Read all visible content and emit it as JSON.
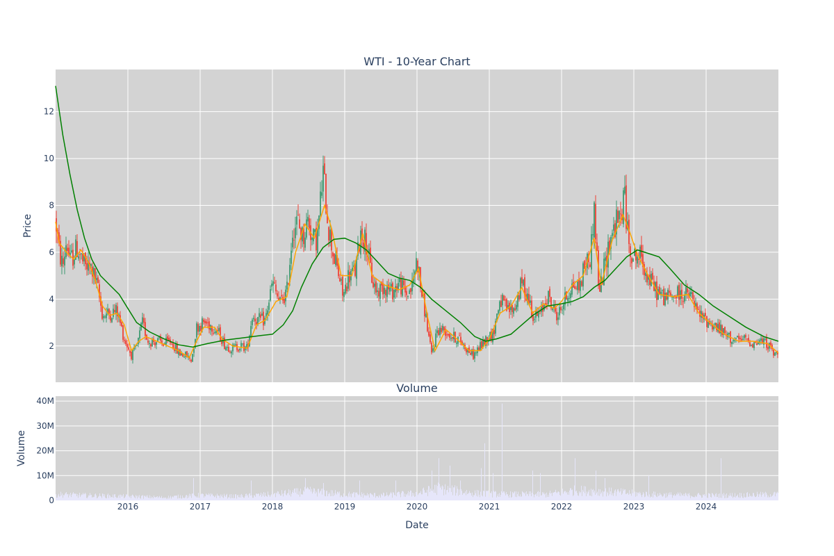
{
  "chart_data": [
    {
      "type": "candlestick",
      "title": "WTI - 10-Year Chart",
      "ylabel": "Price",
      "xlabel": "Date",
      "x_range": [
        2015.0,
        2025.0
      ],
      "ylim": [
        0.45,
        13.8
      ],
      "y_ticks": [
        2,
        4,
        6,
        8,
        10,
        12
      ],
      "x_ticks": [
        2016,
        2017,
        2018,
        2019,
        2020,
        2021,
        2022,
        2023,
        2024
      ],
      "grid": true,
      "increasing_color": "#3d9970",
      "decreasing_color": "#ef4136",
      "background": "#d3d3d3",
      "price_path": [
        [
          2015.0,
          7.4
        ],
        [
          2015.05,
          6.0
        ],
        [
          2015.1,
          5.4
        ],
        [
          2015.15,
          6.5
        ],
        [
          2015.2,
          5.6
        ],
        [
          2015.3,
          6.2
        ],
        [
          2015.4,
          5.4
        ],
        [
          2015.5,
          5.3
        ],
        [
          2015.58,
          4.5
        ],
        [
          2015.65,
          3.3
        ],
        [
          2015.75,
          3.4
        ],
        [
          2015.85,
          3.5
        ],
        [
          2015.95,
          2.3
        ],
        [
          2016.05,
          1.6
        ],
        [
          2016.12,
          1.9
        ],
        [
          2016.2,
          3.0
        ],
        [
          2016.28,
          2.2
        ],
        [
          2016.4,
          2.2
        ],
        [
          2016.5,
          2.1
        ],
        [
          2016.6,
          2.2
        ],
        [
          2016.7,
          1.7
        ],
        [
          2016.8,
          1.6
        ],
        [
          2016.88,
          1.4
        ],
        [
          2016.95,
          2.8
        ],
        [
          2017.05,
          3.0
        ],
        [
          2017.15,
          2.9
        ],
        [
          2017.25,
          2.6
        ],
        [
          2017.35,
          2.0
        ],
        [
          2017.45,
          1.9
        ],
        [
          2017.55,
          2.0
        ],
        [
          2017.65,
          1.9
        ],
        [
          2017.72,
          3.3
        ],
        [
          2017.8,
          3.1
        ],
        [
          2017.9,
          3.1
        ],
        [
          2018.0,
          4.7
        ],
        [
          2018.1,
          3.8
        ],
        [
          2018.2,
          4.3
        ],
        [
          2018.28,
          7.0
        ],
        [
          2018.35,
          7.3
        ],
        [
          2018.42,
          6.6
        ],
        [
          2018.5,
          7.5
        ],
        [
          2018.55,
          6.5
        ],
        [
          2018.62,
          6.6
        ],
        [
          2018.7,
          9.4
        ],
        [
          2018.78,
          7.0
        ],
        [
          2018.85,
          5.8
        ],
        [
          2018.92,
          5.0
        ],
        [
          2018.98,
          4.1
        ],
        [
          2019.05,
          5.0
        ],
        [
          2019.15,
          5.2
        ],
        [
          2019.22,
          6.9
        ],
        [
          2019.3,
          6.4
        ],
        [
          2019.38,
          4.8
        ],
        [
          2019.45,
          4.3
        ],
        [
          2019.55,
          4.6
        ],
        [
          2019.65,
          4.3
        ],
        [
          2019.75,
          4.7
        ],
        [
          2019.85,
          4.2
        ],
        [
          2019.93,
          4.5
        ],
        [
          2020.0,
          5.8
        ],
        [
          2020.05,
          4.5
        ],
        [
          2020.12,
          3.3
        ],
        [
          2020.2,
          1.6
        ],
        [
          2020.28,
          2.7
        ],
        [
          2020.38,
          2.7
        ],
        [
          2020.48,
          2.4
        ],
        [
          2020.58,
          2.3
        ],
        [
          2020.68,
          1.9
        ],
        [
          2020.78,
          1.6
        ],
        [
          2020.88,
          2.0
        ],
        [
          2020.98,
          2.4
        ],
        [
          2021.05,
          2.5
        ],
        [
          2021.15,
          4.0
        ],
        [
          2021.25,
          3.5
        ],
        [
          2021.35,
          3.6
        ],
        [
          2021.45,
          4.7
        ],
        [
          2021.55,
          4.0
        ],
        [
          2021.62,
          3.2
        ],
        [
          2021.72,
          3.4
        ],
        [
          2021.8,
          4.2
        ],
        [
          2021.88,
          3.6
        ],
        [
          2021.95,
          3.3
        ],
        [
          2022.05,
          4.0
        ],
        [
          2022.15,
          4.6
        ],
        [
          2022.25,
          4.5
        ],
        [
          2022.32,
          5.5
        ],
        [
          2022.4,
          5.8
        ],
        [
          2022.45,
          8.0
        ],
        [
          2022.52,
          4.2
        ],
        [
          2022.6,
          5.5
        ],
        [
          2022.68,
          6.7
        ],
        [
          2022.75,
          7.2
        ],
        [
          2022.82,
          7.5
        ],
        [
          2022.87,
          8.6
        ],
        [
          2022.92,
          6.5
        ],
        [
          2023.0,
          5.8
        ],
        [
          2023.1,
          5.8
        ],
        [
          2023.2,
          4.9
        ],
        [
          2023.3,
          4.4
        ],
        [
          2023.4,
          4.1
        ],
        [
          2023.5,
          4.1
        ],
        [
          2023.6,
          4.2
        ],
        [
          2023.7,
          4.2
        ],
        [
          2023.8,
          4.1
        ],
        [
          2023.88,
          3.4
        ],
        [
          2023.95,
          3.2
        ],
        [
          2024.05,
          3.0
        ],
        [
          2024.15,
          2.8
        ],
        [
          2024.25,
          2.5
        ],
        [
          2024.35,
          2.3
        ],
        [
          2024.45,
          2.2
        ],
        [
          2024.55,
          2.3
        ],
        [
          2024.65,
          2.1
        ],
        [
          2024.75,
          2.2
        ],
        [
          2024.85,
          2.1
        ],
        [
          2024.95,
          1.6
        ],
        [
          2025.0,
          1.7
        ]
      ],
      "series": [
        {
          "color": "#ffa500",
          "values": [
            [
              2015.0,
              7.3
            ],
            [
              2015.05,
              6.4
            ],
            [
              2015.15,
              6.0
            ],
            [
              2015.25,
              5.7
            ],
            [
              2015.35,
              6.1
            ],
            [
              2015.45,
              5.6
            ],
            [
              2015.55,
              4.8
            ],
            [
              2015.65,
              3.7
            ],
            [
              2015.75,
              3.3
            ],
            [
              2015.85,
              3.4
            ],
            [
              2015.95,
              2.9
            ],
            [
              2016.05,
              1.8
            ],
            [
              2016.15,
              2.2
            ],
            [
              2016.25,
              2.4
            ],
            [
              2016.4,
              2.2
            ],
            [
              2016.55,
              2.0
            ],
            [
              2016.7,
              1.8
            ],
            [
              2016.85,
              1.5
            ],
            [
              2016.95,
              2.2
            ],
            [
              2017.05,
              2.8
            ],
            [
              2017.2,
              2.8
            ],
            [
              2017.3,
              2.3
            ],
            [
              2017.45,
              2.0
            ],
            [
              2017.65,
              1.9
            ],
            [
              2017.78,
              2.9
            ],
            [
              2017.9,
              3.1
            ],
            [
              2018.05,
              3.9
            ],
            [
              2018.2,
              4.1
            ],
            [
              2018.32,
              6.0
            ],
            [
              2018.45,
              7.2
            ],
            [
              2018.58,
              6.6
            ],
            [
              2018.72,
              8.0
            ],
            [
              2018.82,
              7.0
            ],
            [
              2018.95,
              5.0
            ],
            [
              2019.1,
              5.0
            ],
            [
              2019.25,
              6.8
            ],
            [
              2019.38,
              5.0
            ],
            [
              2019.55,
              4.6
            ],
            [
              2019.75,
              4.4
            ],
            [
              2019.9,
              4.6
            ],
            [
              2020.02,
              5.3
            ],
            [
              2020.15,
              3.2
            ],
            [
              2020.25,
              1.8
            ],
            [
              2020.4,
              2.7
            ],
            [
              2020.55,
              2.3
            ],
            [
              2020.72,
              1.8
            ],
            [
              2020.88,
              1.8
            ],
            [
              2021.0,
              2.3
            ],
            [
              2021.15,
              3.4
            ],
            [
              2021.3,
              3.7
            ],
            [
              2021.45,
              4.5
            ],
            [
              2021.6,
              3.4
            ],
            [
              2021.75,
              3.8
            ],
            [
              2021.9,
              3.6
            ],
            [
              2022.0,
              3.9
            ],
            [
              2022.15,
              4.6
            ],
            [
              2022.3,
              5.0
            ],
            [
              2022.45,
              6.6
            ],
            [
              2022.55,
              4.6
            ],
            [
              2022.7,
              6.5
            ],
            [
              2022.85,
              7.6
            ],
            [
              2022.95,
              6.8
            ],
            [
              2023.05,
              5.9
            ],
            [
              2023.2,
              5.0
            ],
            [
              2023.35,
              4.2
            ],
            [
              2023.55,
              4.1
            ],
            [
              2023.75,
              4.2
            ],
            [
              2023.9,
              3.4
            ],
            [
              2024.05,
              3.0
            ],
            [
              2024.25,
              2.5
            ],
            [
              2024.45,
              2.2
            ],
            [
              2024.65,
              2.2
            ],
            [
              2024.85,
              2.1
            ],
            [
              2025.0,
              1.7
            ]
          ]
        },
        {
          "color": "#008000",
          "values": [
            [
              2015.0,
              13.1
            ],
            [
              2015.1,
              11.0
            ],
            [
              2015.2,
              9.3
            ],
            [
              2015.3,
              7.8
            ],
            [
              2015.4,
              6.6
            ],
            [
              2015.5,
              5.7
            ],
            [
              2015.62,
              5.0
            ],
            [
              2015.75,
              4.6
            ],
            [
              2015.88,
              4.2
            ],
            [
              2016.0,
              3.6
            ],
            [
              2016.12,
              3.0
            ],
            [
              2016.3,
              2.6
            ],
            [
              2016.5,
              2.3
            ],
            [
              2016.7,
              2.05
            ],
            [
              2016.9,
              1.95
            ],
            [
              2017.1,
              2.1
            ],
            [
              2017.35,
              2.25
            ],
            [
              2017.6,
              2.35
            ],
            [
              2017.85,
              2.45
            ],
            [
              2018.0,
              2.5
            ],
            [
              2018.15,
              2.9
            ],
            [
              2018.28,
              3.5
            ],
            [
              2018.4,
              4.5
            ],
            [
              2018.55,
              5.5
            ],
            [
              2018.7,
              6.2
            ],
            [
              2018.85,
              6.55
            ],
            [
              2019.0,
              6.6
            ],
            [
              2019.15,
              6.4
            ],
            [
              2019.3,
              6.1
            ],
            [
              2019.45,
              5.6
            ],
            [
              2019.6,
              5.1
            ],
            [
              2019.75,
              4.9
            ],
            [
              2019.9,
              4.8
            ],
            [
              2020.05,
              4.5
            ],
            [
              2020.2,
              4.0
            ],
            [
              2020.4,
              3.5
            ],
            [
              2020.6,
              3.0
            ],
            [
              2020.8,
              2.4
            ],
            [
              2020.95,
              2.2
            ],
            [
              2021.1,
              2.3
            ],
            [
              2021.3,
              2.5
            ],
            [
              2021.45,
              2.9
            ],
            [
              2021.6,
              3.3
            ],
            [
              2021.8,
              3.7
            ],
            [
              2022.0,
              3.8
            ],
            [
              2022.15,
              3.9
            ],
            [
              2022.3,
              4.1
            ],
            [
              2022.45,
              4.5
            ],
            [
              2022.6,
              4.8
            ],
            [
              2022.75,
              5.3
            ],
            [
              2022.9,
              5.8
            ],
            [
              2023.05,
              6.1
            ],
            [
              2023.2,
              5.95
            ],
            [
              2023.35,
              5.8
            ],
            [
              2023.5,
              5.3
            ],
            [
              2023.7,
              4.6
            ],
            [
              2023.9,
              4.2
            ],
            [
              2024.1,
              3.7
            ],
            [
              2024.3,
              3.3
            ],
            [
              2024.55,
              2.8
            ],
            [
              2024.8,
              2.4
            ],
            [
              2025.0,
              2.2
            ]
          ]
        }
      ]
    },
    {
      "type": "bar",
      "title": "Volume",
      "ylabel": "Volume",
      "xlabel": "Date",
      "ylim": [
        0,
        42000000
      ],
      "y_tick_labels": [
        "0",
        "10M",
        "20M",
        "30M",
        "40M"
      ],
      "y_ticks": [
        0,
        10000000,
        20000000,
        30000000,
        40000000
      ],
      "x_tick_labels": [
        "2016",
        "2017",
        "2018",
        "2019",
        "2020",
        "2021",
        "2022",
        "2023",
        "2024"
      ],
      "bar_color": "#e6e6fa",
      "spikes": [
        [
          2020.2,
          12000000
        ],
        [
          2020.3,
          17000000
        ],
        [
          2020.45,
          14000000
        ],
        [
          2020.6,
          8000000
        ],
        [
          2020.88,
          13000000
        ],
        [
          2020.93,
          23000000
        ],
        [
          2021.05,
          11000000
        ],
        [
          2021.17,
          39000000
        ],
        [
          2022.18,
          17000000
        ],
        [
          2022.47,
          12000000
        ],
        [
          2022.6,
          9000000
        ],
        [
          2023.2,
          10000000
        ],
        [
          2024.2,
          17000000
        ],
        [
          2017.7,
          8000000
        ],
        [
          2016.9,
          9000000
        ],
        [
          2018.45,
          9000000
        ],
        [
          2018.7,
          7000000
        ],
        [
          2019.2,
          8000000
        ],
        [
          2019.7,
          8000000
        ],
        [
          2021.6,
          12000000
        ],
        [
          2021.7,
          11000000
        ]
      ],
      "base_levels": [
        [
          2015.0,
          3000000
        ],
        [
          2015.4,
          2500000
        ],
        [
          2016.0,
          2000000
        ],
        [
          2016.5,
          1500000
        ],
        [
          2017.0,
          2500000
        ],
        [
          2017.5,
          2000000
        ],
        [
          2018.0,
          3000000
        ],
        [
          2018.5,
          4500000
        ],
        [
          2019.0,
          3000000
        ],
        [
          2019.5,
          2500000
        ],
        [
          2020.0,
          3500000
        ],
        [
          2020.3,
          6000000
        ],
        [
          2020.8,
          3500000
        ],
        [
          2021.2,
          3000000
        ],
        [
          2021.8,
          3000000
        ],
        [
          2022.2,
          5000000
        ],
        [
          2022.8,
          4000000
        ],
        [
          2023.2,
          3000000
        ],
        [
          2023.8,
          2500000
        ],
        [
          2024.3,
          2500000
        ],
        [
          2025.0,
          3000000
        ]
      ]
    }
  ]
}
